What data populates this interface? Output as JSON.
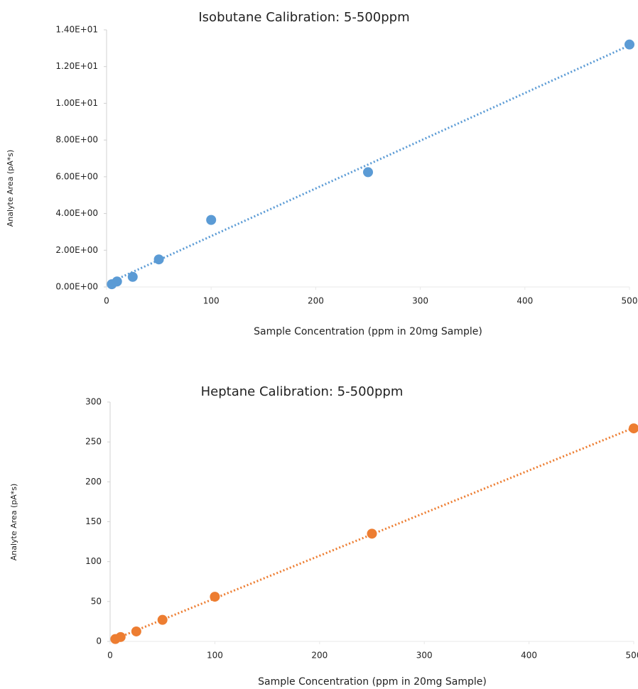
{
  "chart_data": [
    {
      "type": "scatter",
      "title": "Isobutane Calibration: 5-500ppm",
      "x_label": "Sample Concentration (ppm in 20mg Sample)",
      "y_label": "Analyte Area (pA*s)",
      "x": [
        5,
        10,
        25,
        50,
        100,
        250,
        500
      ],
      "values": [
        0.15,
        0.3,
        0.55,
        1.5,
        3.65,
        6.25,
        13.2
      ],
      "color": "#5b9bd5",
      "trendline": "linear",
      "xlim": [
        0,
        500
      ],
      "xticks": [
        0,
        100,
        200,
        300,
        400,
        500
      ],
      "ylim": [
        0,
        14
      ],
      "yticks": [
        {
          "value": 0,
          "label": "0.00E+00"
        },
        {
          "value": 2,
          "label": "2.00E+00"
        },
        {
          "value": 4,
          "label": "4.00E+00"
        },
        {
          "value": 6,
          "label": "6.00E+00"
        },
        {
          "value": 8,
          "label": "8.00E+00"
        },
        {
          "value": 10,
          "label": "1.00E+01"
        },
        {
          "value": 12,
          "label": "1.20E+01"
        },
        {
          "value": 14,
          "label": "1.40E+01"
        }
      ]
    },
    {
      "type": "scatter",
      "title": "Heptane Calibration: 5-500ppm",
      "x_label": "Sample Concentration (ppm in 20mg Sample)",
      "y_label": "Analyte Area (pA*s)",
      "x": [
        5,
        10,
        25,
        50,
        100,
        250,
        500
      ],
      "values": [
        3,
        5.5,
        12.5,
        27,
        56,
        135,
        267
      ],
      "color": "#ed7d31",
      "trendline": "linear",
      "xlim": [
        0,
        500
      ],
      "xticks": [
        0,
        100,
        200,
        300,
        400,
        500
      ],
      "ylim": [
        0,
        300
      ],
      "yticks": [
        0,
        50,
        100,
        150,
        200,
        250,
        300
      ]
    }
  ]
}
